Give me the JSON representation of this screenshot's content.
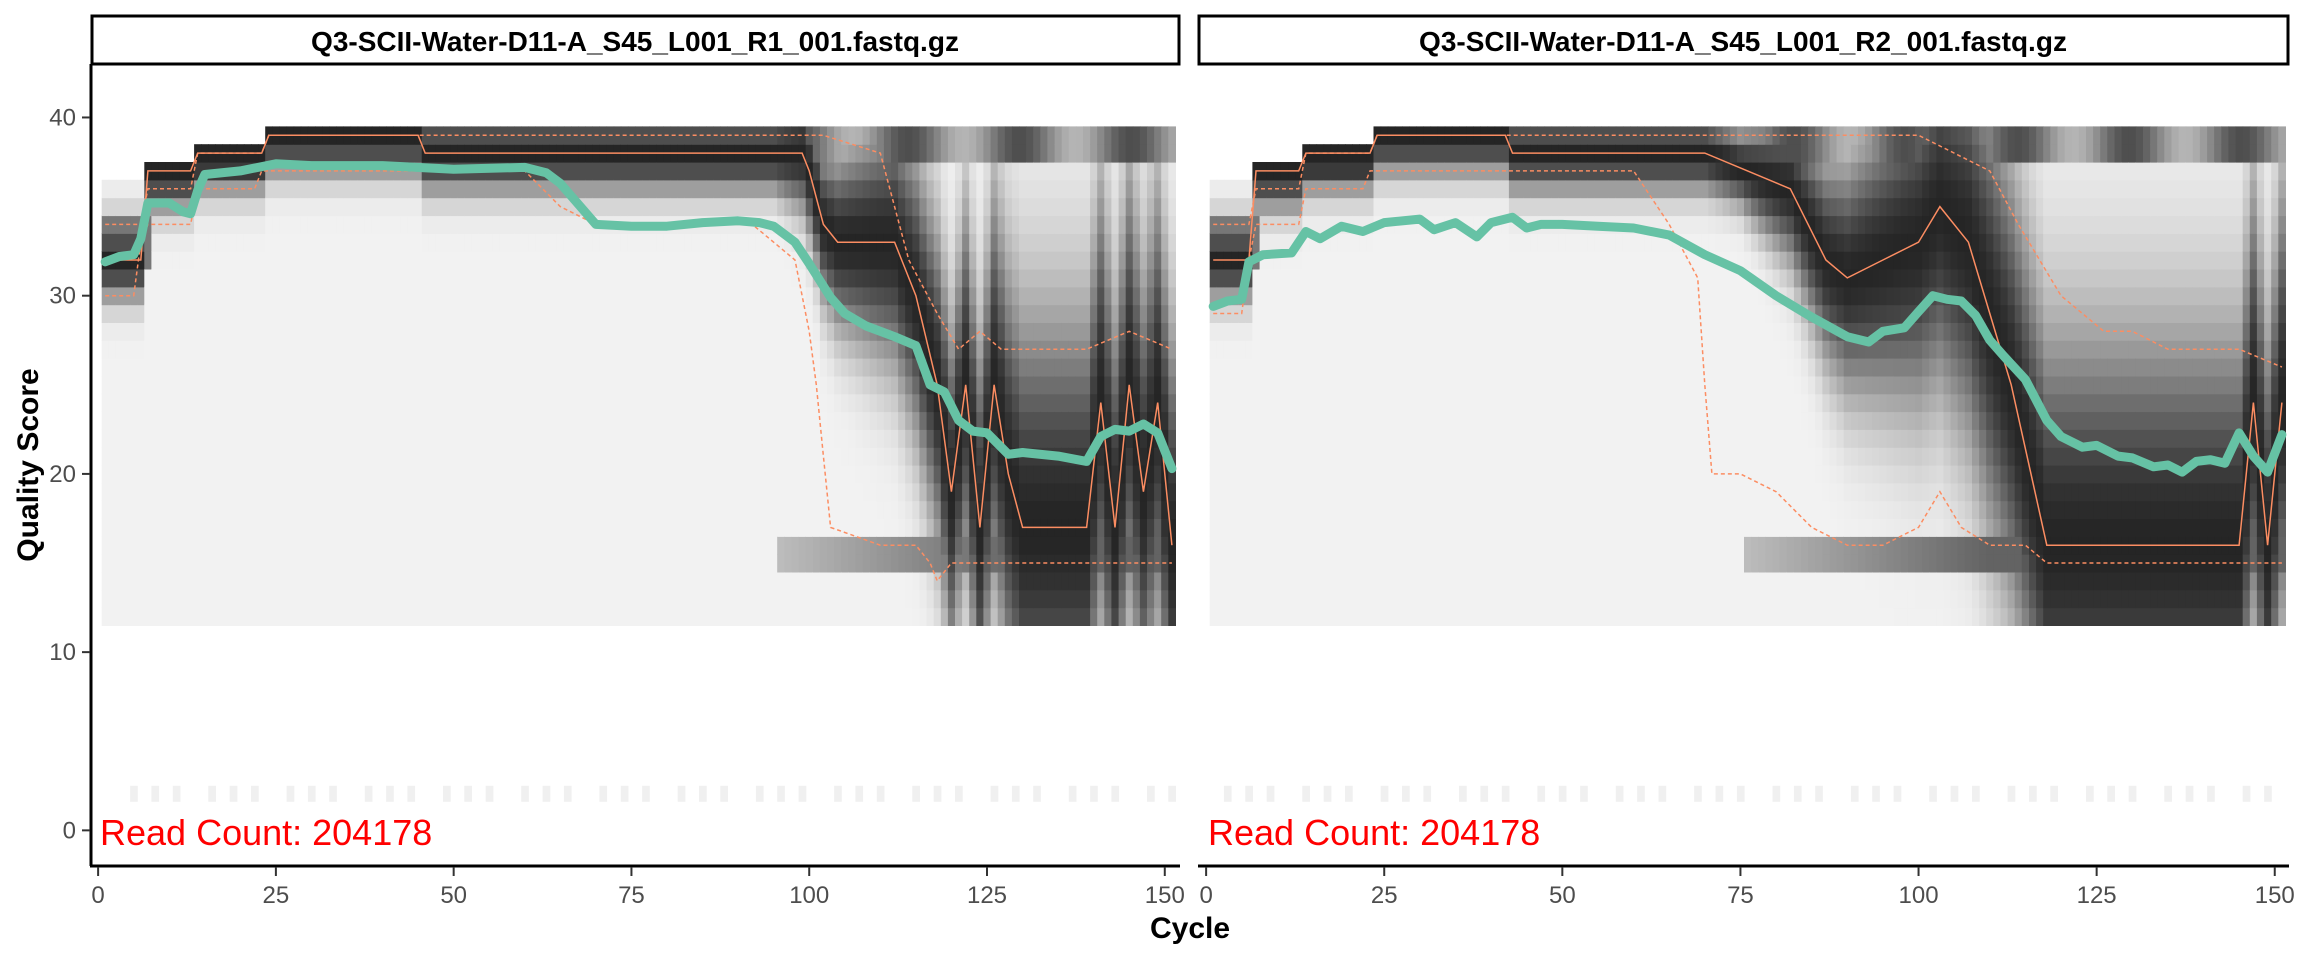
{
  "chart_data": {
    "type": "line",
    "xlabel": "Cycle",
    "ylabel": "Quality Score",
    "xlim": [
      -1,
      152
    ],
    "ylim": [
      -2,
      43
    ],
    "x_ticks": [
      0,
      25,
      50,
      75,
      100,
      125,
      150
    ],
    "y_ticks": [
      0,
      10,
      20,
      30,
      40
    ],
    "grid": false,
    "colors": {
      "mean_line": "#66C2A5",
      "quantile_line": "#FC8D62",
      "read_count": "#FF0000",
      "heatmap_dark": "#1a1a1a",
      "heatmap_light": "#f2f2f2"
    },
    "panels": [
      {
        "title": "Q3-SCII-Water-D11-A_S45_L001_R1_001.fastq.gz",
        "read_count_label": "Read Count:  204178",
        "mean_quality": {
          "x": [
            1,
            3,
            5,
            6,
            7,
            10,
            12,
            13,
            14,
            15,
            20,
            25,
            30,
            40,
            50,
            60,
            63,
            65,
            70,
            75,
            80,
            85,
            90,
            93,
            95,
            98,
            100,
            103,
            105,
            108,
            112,
            115,
            117,
            119,
            121,
            123,
            125,
            128,
            130,
            135,
            139,
            141,
            143,
            145,
            147,
            149,
            151
          ],
          "y": [
            31.9,
            32.2,
            32.3,
            33.2,
            35.2,
            35.2,
            34.7,
            34.6,
            35.9,
            36.8,
            37.0,
            37.4,
            37.3,
            37.3,
            37.1,
            37.2,
            36.9,
            36.3,
            34.0,
            33.9,
            33.9,
            34.1,
            34.2,
            34.1,
            33.9,
            33.0,
            31.8,
            29.9,
            29.0,
            28.3,
            27.7,
            27.2,
            25.0,
            24.6,
            23.0,
            22.4,
            22.3,
            21.1,
            21.2,
            21.0,
            20.7,
            22.1,
            22.5,
            22.4,
            22.8,
            22.3,
            20.3
          ]
        },
        "median_quality": {
          "x": [
            1,
            6,
            7,
            13,
            14,
            23,
            24,
            45,
            46,
            99,
            100,
            102,
            104,
            108,
            112,
            115,
            118,
            120,
            122,
            124,
            126,
            128,
            130,
            135,
            139,
            141,
            143,
            145,
            147,
            149,
            151
          ],
          "y": [
            32,
            32,
            37,
            37,
            38,
            38,
            39,
            39,
            38,
            38,
            37,
            34,
            33,
            33,
            33,
            30,
            25,
            19,
            25,
            17,
            25,
            20,
            17,
            17,
            17,
            24,
            17,
            25,
            19,
            24,
            16
          ]
        },
        "quantile_lines": [
          {
            "x": [
              1,
              5,
              6,
              7,
              13,
              14,
              22,
              23,
              30,
              60,
              65,
              70,
              75,
              85,
              92,
              98,
              100,
              101,
              102,
              103,
              110,
              115,
              117,
              118,
              120,
              122,
              125,
              150,
              151
            ],
            "y": [
              30,
              30,
              33,
              34,
              34,
              36,
              36,
              37,
              37,
              37,
              35,
              34,
              34,
              34,
              34,
              32,
              28,
              25,
              21,
              17,
              16,
              16,
              15,
              14,
              15,
              15,
              15,
              15,
              15
            ]
          },
          {
            "x": [
              1,
              6,
              7,
              13,
              14,
              23,
              24,
              90,
              102,
              110,
              114,
              118,
              121,
              124,
              127,
              131,
              139,
              145,
              151
            ],
            "y": [
              34,
              34,
              36,
              36,
              38,
              38,
              39,
              39,
              39,
              38,
              32,
              29,
              27,
              28,
              27,
              27,
              27,
              28,
              27
            ]
          }
        ]
      },
      {
        "title": "Q3-SCII-Water-D11-A_S45_L001_R2_001.fastq.gz",
        "read_count_label": "Read Count:  204178",
        "mean_quality": {
          "x": [
            1,
            3,
            5,
            6,
            8,
            12,
            14,
            16,
            19,
            22,
            25,
            30,
            32,
            35,
            38,
            40,
            43,
            45,
            47,
            50,
            55,
            60,
            65,
            70,
            75,
            80,
            85,
            90,
            93,
            95,
            98,
            100,
            102,
            104,
            106,
            108,
            110,
            112,
            115,
            118,
            120,
            123,
            125,
            128,
            130,
            133,
            135,
            137,
            139,
            141,
            143,
            145,
            147,
            149,
            151
          ],
          "y": [
            29.4,
            29.7,
            29.8,
            31.9,
            32.3,
            32.4,
            33.6,
            33.2,
            33.9,
            33.6,
            34.1,
            34.3,
            33.7,
            34.1,
            33.3,
            34.1,
            34.4,
            33.8,
            34.0,
            34.0,
            33.9,
            33.8,
            33.4,
            32.3,
            31.4,
            30.0,
            28.8,
            27.7,
            27.4,
            28.0,
            28.2,
            29.1,
            30.0,
            29.8,
            29.7,
            28.9,
            27.5,
            26.6,
            25.3,
            23.0,
            22.1,
            21.5,
            21.6,
            21.0,
            20.9,
            20.4,
            20.5,
            20.1,
            20.7,
            20.8,
            20.6,
            22.3,
            21.0,
            20.1,
            22.2
          ]
        },
        "median_quality": {
          "x": [
            1,
            6,
            7,
            13,
            14,
            23,
            24,
            42,
            43,
            60,
            70,
            82,
            87,
            90,
            95,
            100,
            103,
            107,
            110,
            113,
            118,
            120,
            125,
            130,
            135,
            139,
            145,
            147,
            149,
            151
          ],
          "y": [
            32,
            32,
            37,
            37,
            38,
            38,
            39,
            39,
            38,
            38,
            38,
            36,
            32,
            31,
            32,
            33,
            35,
            33,
            29,
            25,
            16,
            16,
            16,
            16,
            16,
            16,
            16,
            24,
            16,
            24
          ]
        },
        "quantile_lines": [
          {
            "x": [
              1,
              5,
              6,
              7,
              13,
              14,
              22,
              23,
              30,
              60,
              65,
              69,
              70,
              71,
              72,
              75,
              80,
              85,
              90,
              95,
              100,
              103,
              106,
              110,
              115,
              118,
              120,
              125,
              130,
              140,
              151
            ],
            "y": [
              29,
              29,
              32,
              34,
              34,
              36,
              36,
              37,
              37,
              37,
              34,
              31,
              25,
              20,
              20,
              20,
              19,
              17,
              16,
              16,
              17,
              19,
              17,
              16,
              16,
              15,
              15,
              15,
              15,
              15,
              15
            ]
          },
          {
            "x": [
              1,
              6,
              7,
              13,
              14,
              23,
              24,
              60,
              80,
              100,
              110,
              114,
              120,
              126,
              130,
              135,
              140,
              145,
              151
            ],
            "y": [
              34,
              34,
              36,
              36,
              38,
              38,
              39,
              39,
              39,
              39,
              37,
              34,
              30,
              28,
              28,
              27,
              27,
              27,
              26
            ]
          }
        ]
      }
    ]
  }
}
